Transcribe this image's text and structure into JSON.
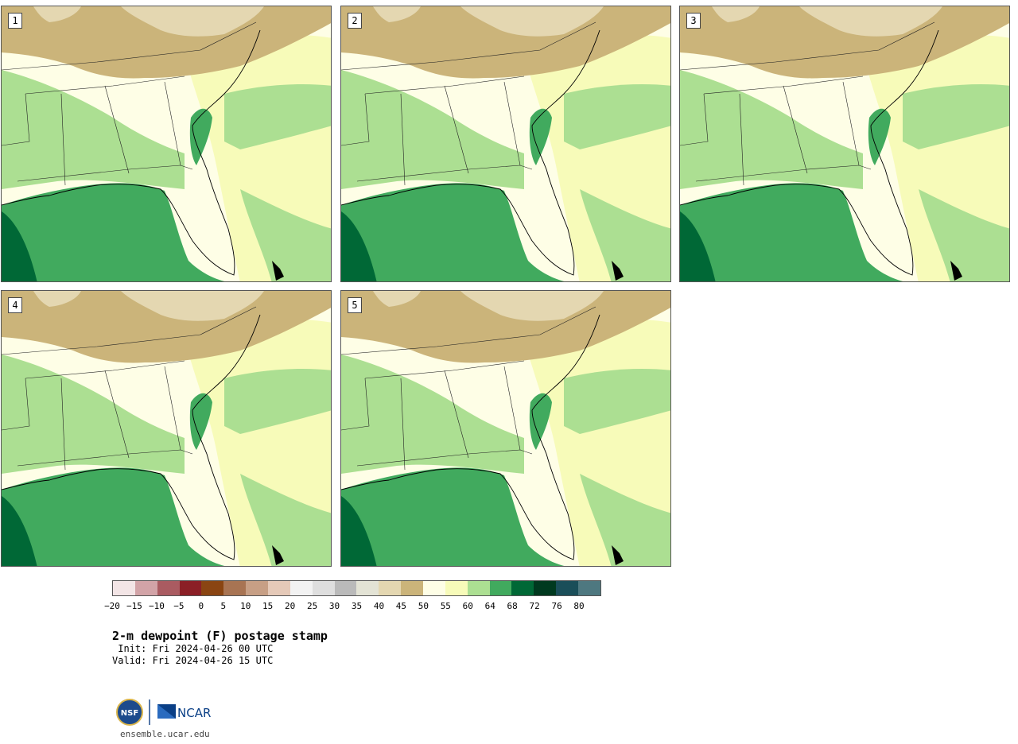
{
  "panels": [
    {
      "label": "1"
    },
    {
      "label": "2"
    },
    {
      "label": "3"
    },
    {
      "label": "4"
    },
    {
      "label": "5"
    }
  ],
  "colorbar": {
    "colors": [
      "#f3e5e6",
      "#d2a3a7",
      "#aa5b61",
      "#8b1f26",
      "#8a4512",
      "#a87453",
      "#c79f85",
      "#e5c9b8",
      "#f2f2f2",
      "#dedede",
      "#bababa",
      "#e3e3d5",
      "#e4d7b1",
      "#cbb47a",
      "#fefee6",
      "#f7fbb9",
      "#acdf92",
      "#41aa5e",
      "#006836",
      "#00391f",
      "#1a4e59",
      "#4e7880"
    ],
    "ticks": [
      "−20",
      "−15",
      "−10",
      "−5",
      "0",
      "5",
      "10",
      "15",
      "20",
      "25",
      "30",
      "35",
      "40",
      "45",
      "50",
      "55",
      "60",
      "64",
      "68",
      "72",
      "76",
      "80"
    ]
  },
  "title": "2-m dewpoint (F) postage stamp",
  "init": " Init: Fri 2024-04-26 00 UTC",
  "valid": "Valid: Fri 2024-04-26 15 UTC",
  "logo": {
    "left": "NSF",
    "right": "NCAR"
  },
  "url": "ensemble.ucar.edu"
}
